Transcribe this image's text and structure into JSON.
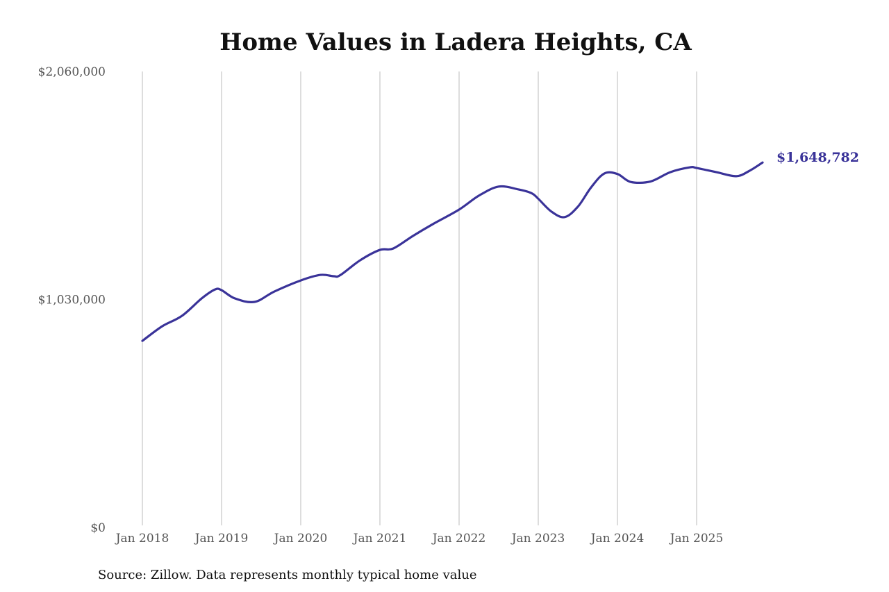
{
  "chart_data": {
    "type": "line",
    "title": "Home Values in Ladera Heights, CA",
    "source": "Source: Zillow. Data represents monthly typical home value",
    "ylim": [
      0,
      2060000
    ],
    "y_ticks": [
      0,
      1030000,
      2060000
    ],
    "y_tick_labels": [
      "$0",
      "$1,030,000",
      "$2,060,000"
    ],
    "x_ticks": [
      "2018-01",
      "2019-01",
      "2020-01",
      "2021-01",
      "2022-01",
      "2023-01",
      "2024-01",
      "2025-01"
    ],
    "x_tick_labels": [
      "Jan 2018",
      "Jan 2019",
      "Jan 2020",
      "Jan 2021",
      "Jan 2022",
      "Jan 2023",
      "Jan 2024",
      "Jan 2025"
    ],
    "grid": "vertical",
    "line_color": "#3a3399",
    "end_label": "$1,648,782",
    "series": [
      {
        "points": [
          [
            "2018-01",
            843000
          ],
          [
            "2018-04",
            909000
          ],
          [
            "2018-07",
            956000
          ],
          [
            "2018-10",
            1035000
          ],
          [
            "2018-12",
            1075000
          ],
          [
            "2019-01",
            1072000
          ],
          [
            "2019-03",
            1035000
          ],
          [
            "2019-06",
            1019000
          ],
          [
            "2019-09",
            1066000
          ],
          [
            "2020-01",
            1116000
          ],
          [
            "2020-04",
            1141000
          ],
          [
            "2020-06",
            1135000
          ],
          [
            "2020-07",
            1140000
          ],
          [
            "2020-10",
            1207000
          ],
          [
            "2021-01",
            1254000
          ],
          [
            "2021-03",
            1260000
          ],
          [
            "2021-06",
            1317000
          ],
          [
            "2021-09",
            1370000
          ],
          [
            "2022-01",
            1436000
          ],
          [
            "2022-04",
            1499000
          ],
          [
            "2022-07",
            1540000
          ],
          [
            "2022-10",
            1527000
          ],
          [
            "2022-12",
            1510000
          ],
          [
            "2023-01",
            1485000
          ],
          [
            "2023-03",
            1427000
          ],
          [
            "2023-05",
            1402000
          ],
          [
            "2023-07",
            1449000
          ],
          [
            "2023-09",
            1536000
          ],
          [
            "2023-11",
            1599000
          ],
          [
            "2024-01",
            1597000
          ],
          [
            "2024-03",
            1561000
          ],
          [
            "2024-06",
            1563000
          ],
          [
            "2024-09",
            1605000
          ],
          [
            "2024-12",
            1627000
          ],
          [
            "2025-01",
            1624000
          ],
          [
            "2025-04",
            1605000
          ],
          [
            "2025-07",
            1587000
          ],
          [
            "2025-09",
            1611000
          ],
          [
            "2025-11",
            1648782
          ]
        ]
      }
    ]
  }
}
